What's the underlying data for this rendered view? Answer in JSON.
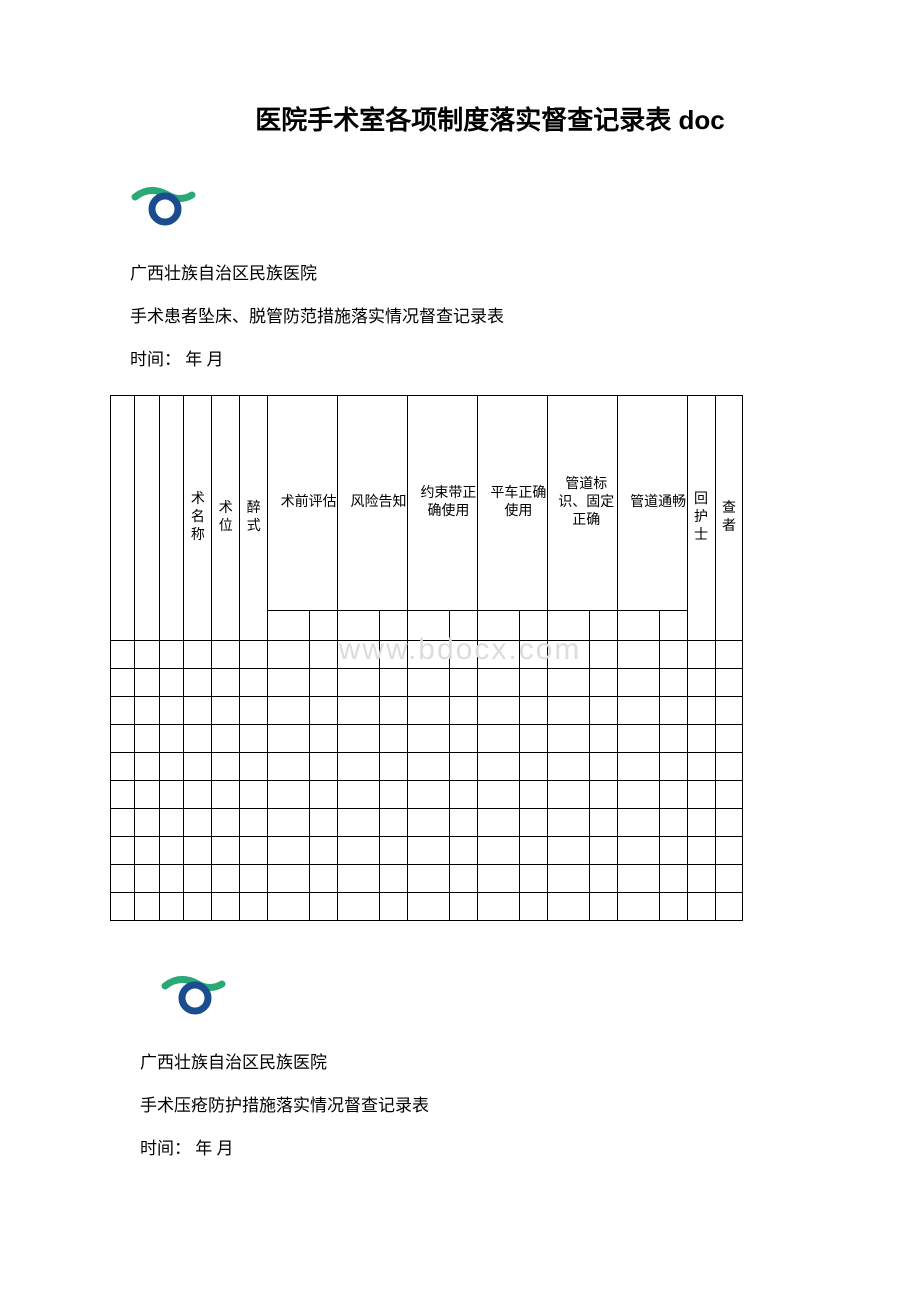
{
  "document": {
    "title": "医院手术室各项制度落实督查记录表 doc"
  },
  "logo": {
    "colors": {
      "swoosh": "#2aa876",
      "circle": "#1a4c8f"
    }
  },
  "section1": {
    "organization": "广西壮族自治区民族医院",
    "subtitle": "手术患者坠床、脱管防范措施落实情况督查记录表",
    "timeLabel": "时间：  年 月",
    "headers": {
      "c1": "",
      "c2": "",
      "c3": "",
      "c4": "术名称",
      "c5": "术\n位",
      "c6": "醉\n式",
      "c7": "术前评估",
      "c8": "风险告知",
      "c9": "约束带正确使用",
      "c10": "平车正确使用",
      "c11": "管道标识、固定正确",
      "c12": "管道通畅",
      "c13": "回护士",
      "c14": "查者"
    },
    "rowCount": 10
  },
  "section2": {
    "organization": "广西壮族自治区民族医院",
    "subtitle": " 手术压疮防护措施落实情况督查记录表",
    "timeLabel": "时间：  年 月"
  },
  "watermark": "www.bdocx.com",
  "table": {
    "columnPercents": [
      3.5,
      3.5,
      3.5,
      4,
      4,
      4,
      6,
      4,
      6,
      4,
      6,
      4,
      6,
      4,
      6,
      4,
      6,
      4,
      4,
      4
    ],
    "borderColor": "#000000",
    "fontSize": 15
  }
}
